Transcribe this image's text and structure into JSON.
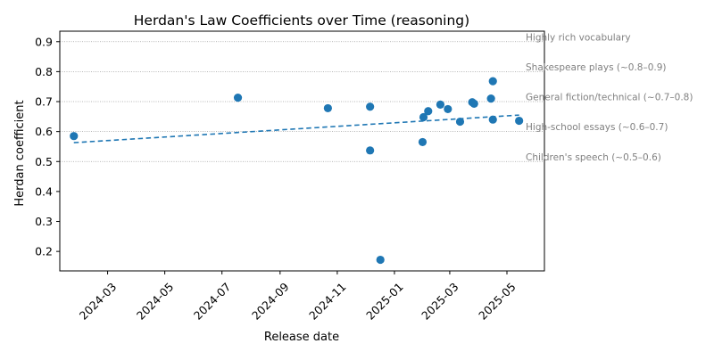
{
  "chart_data": {
    "type": "scatter",
    "title": "Herdan's Law Coefficients over Time (reasoning)",
    "xlabel": "Release date",
    "ylabel": "Herdan coefficient",
    "xlim": [
      "2024-01-10",
      "2025-06-10"
    ],
    "ylim": [
      0.135,
      0.935
    ],
    "grid": false,
    "x_ticks": [
      "2024-03-01",
      "2024-05-01",
      "2024-07-01",
      "2024-09-01",
      "2024-11-01",
      "2025-01-01",
      "2025-03-01",
      "2025-05-01"
    ],
    "x_tick_labels": [
      "2024-03",
      "2024-05",
      "2024-07",
      "2024-09",
      "2024-11",
      "2025-01",
      "2025-03",
      "2025-05"
    ],
    "y_ticks": [
      0.2,
      0.3,
      0.4,
      0.5,
      0.6,
      0.7,
      0.8,
      0.9
    ],
    "y_tick_labels": [
      "0.2",
      "0.3",
      "0.4",
      "0.5",
      "0.6",
      "0.7",
      "0.8",
      "0.9"
    ],
    "points": [
      {
        "x": "2024-01-25",
        "y": 0.585
      },
      {
        "x": "2024-07-18",
        "y": 0.713
      },
      {
        "x": "2024-10-22",
        "y": 0.678
      },
      {
        "x": "2024-12-06",
        "y": 0.683
      },
      {
        "x": "2024-12-06",
        "y": 0.537
      },
      {
        "x": "2024-12-17",
        "y": 0.172
      },
      {
        "x": "2025-01-31",
        "y": 0.565
      },
      {
        "x": "2025-02-01",
        "y": 0.648
      },
      {
        "x": "2025-02-06",
        "y": 0.668
      },
      {
        "x": "2025-02-19",
        "y": 0.69
      },
      {
        "x": "2025-02-27",
        "y": 0.675
      },
      {
        "x": "2025-03-12",
        "y": 0.633
      },
      {
        "x": "2025-03-25",
        "y": 0.698
      },
      {
        "x": "2025-03-27",
        "y": 0.693
      },
      {
        "x": "2025-04-14",
        "y": 0.71
      },
      {
        "x": "2025-04-16",
        "y": 0.768
      },
      {
        "x": "2025-04-16",
        "y": 0.64
      },
      {
        "x": "2025-05-14",
        "y": 0.636
      }
    ],
    "trend_line": {
      "x": [
        "2024-01-25",
        "2025-05-14"
      ],
      "y": [
        0.563,
        0.655
      ],
      "style": "dashed"
    },
    "reference_lines": [
      {
        "y": 0.9,
        "label": "Highly rich vocabulary"
      },
      {
        "y": 0.8,
        "label": "Shakespeare plays (~0.8–0.9)"
      },
      {
        "y": 0.7,
        "label": "General fiction/technical (~0.7–0.8)"
      },
      {
        "y": 0.6,
        "label": "High-school essays (~0.6–0.7)"
      },
      {
        "y": 0.5,
        "label": "Children's speech (~0.5–0.6)"
      }
    ],
    "colors": {
      "points": "#1f77b4",
      "trend": "#1f77b4",
      "reference": "#a0a0a0",
      "reference_text": "#808080"
    }
  }
}
